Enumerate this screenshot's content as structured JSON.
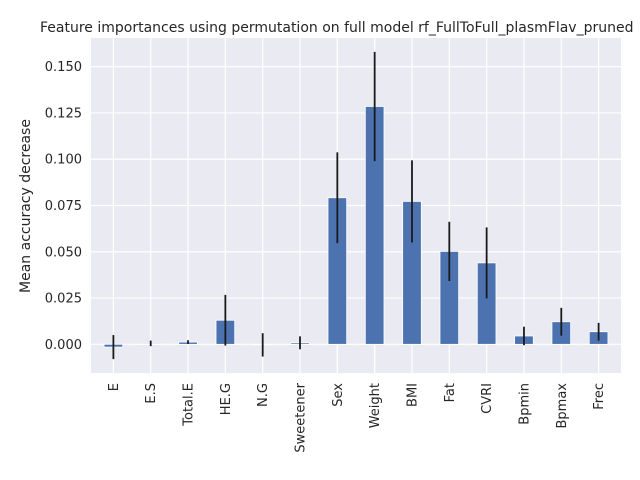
{
  "chart_data": {
    "type": "bar",
    "title": "Feature importances using permutation on full model rf_FullToFull_plasmFlav_pruned",
    "ylabel": "Mean accuracy decrease",
    "xlabel": "",
    "categories": [
      "E",
      "E.S",
      "Total.E",
      "HE.G",
      "N.G",
      "Sweetener",
      "Sex",
      "Weight",
      "BMI",
      "Fat",
      "CVRI",
      "Bpmin",
      "Bpmax",
      "Frec"
    ],
    "values": [
      -0.0015,
      0.0005,
      0.0012,
      0.013,
      -0.0003,
      0.0008,
      0.0792,
      0.1285,
      0.0772,
      0.0502,
      0.044,
      0.0045,
      0.0122,
      0.0068
    ],
    "errors": [
      0.0065,
      0.0015,
      0.001,
      0.0137,
      0.0063,
      0.0035,
      0.0245,
      0.0295,
      0.0222,
      0.016,
      0.0192,
      0.005,
      0.0075,
      0.0048
    ],
    "ylim": [
      -0.0155,
      0.1655
    ],
    "yticks": [
      0.0,
      0.025,
      0.05,
      0.075,
      0.1,
      0.125,
      0.15
    ],
    "ytick_labels": [
      "0.000",
      "0.025",
      "0.050",
      "0.075",
      "0.100",
      "0.125",
      "0.150"
    ],
    "grid": true,
    "colors": {
      "bar": "#4c72b0",
      "background": "#eaeaf2",
      "error": "#1a1a1a"
    }
  }
}
